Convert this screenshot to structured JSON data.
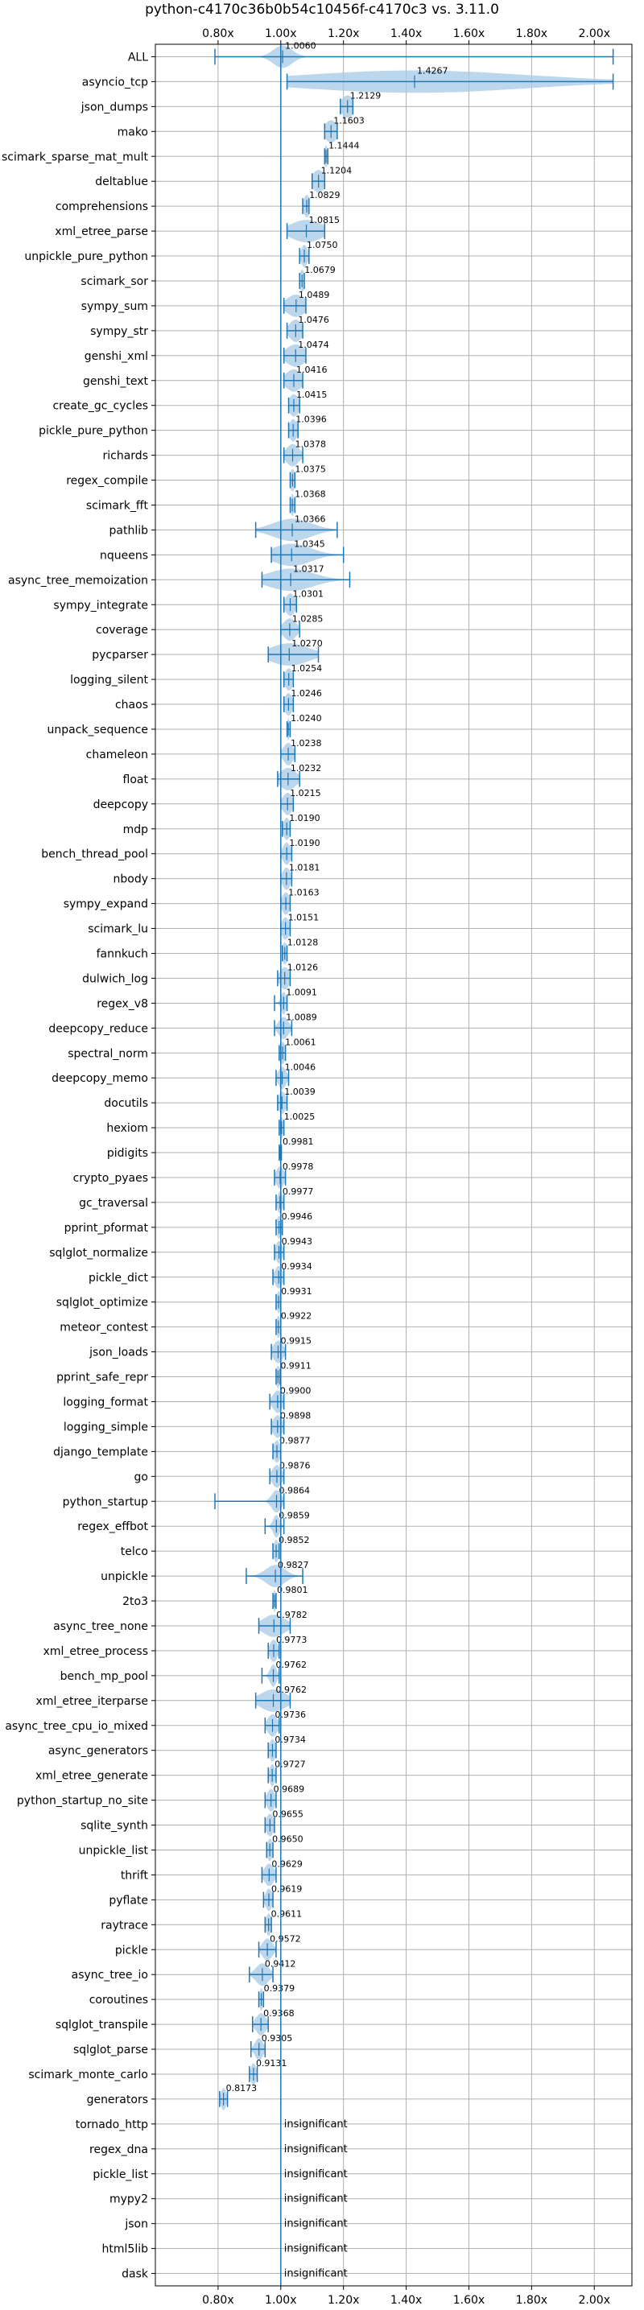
{
  "chart_data": {
    "type": "violin",
    "title": "python-c4170c36b0b54c10456f-c4170c3 vs. 3.11.0",
    "xlabel": "",
    "ylabel": "",
    "xlim": [
      0.6,
      2.12
    ],
    "x_ticks": [
      0.8,
      1.0,
      1.2,
      1.4,
      1.6,
      1.8,
      2.0
    ],
    "x_tick_labels": [
      "0.80x",
      "1.00x",
      "1.20x",
      "1.40x",
      "1.60x",
      "1.80x",
      "2.00x"
    ],
    "reference_line": 1.0,
    "grid": true,
    "colors": {
      "violin": "#a6c8e6",
      "line": "#1f77b4",
      "grid": "#b0b0b0"
    },
    "insignificant_text": "insignificant",
    "benchmarks": [
      {
        "name": "ALL",
        "label": "1.0060",
        "value": 1.006,
        "min": 0.79,
        "max": 2.06,
        "spread": 0.03
      },
      {
        "name": "asyncio_tcp",
        "label": "1.4267",
        "value": 1.4267,
        "min": 1.02,
        "max": 2.06,
        "spread": 0.35
      },
      {
        "name": "json_dumps",
        "label": "1.2129",
        "value": 1.2129,
        "min": 1.19,
        "max": 1.23,
        "spread": 0.02
      },
      {
        "name": "mako",
        "label": "1.1603",
        "value": 1.1603,
        "min": 1.14,
        "max": 1.18,
        "spread": 0.02
      },
      {
        "name": "scimark_sparse_mat_mult",
        "label": "1.1444",
        "value": 1.1444,
        "min": 1.14,
        "max": 1.15,
        "spread": 0.005
      },
      {
        "name": "deltablue",
        "label": "1.1204",
        "value": 1.1204,
        "min": 1.1,
        "max": 1.14,
        "spread": 0.02
      },
      {
        "name": "comprehensions",
        "label": "1.0829",
        "value": 1.0829,
        "min": 1.07,
        "max": 1.09,
        "spread": 0.01
      },
      {
        "name": "xml_etree_parse",
        "label": "1.0815",
        "value": 1.0815,
        "min": 1.02,
        "max": 1.14,
        "spread": 0.05
      },
      {
        "name": "unpickle_pure_python",
        "label": "1.0750",
        "value": 1.075,
        "min": 1.06,
        "max": 1.09,
        "spread": 0.01
      },
      {
        "name": "scimark_sor",
        "label": "1.0679",
        "value": 1.0679,
        "min": 1.06,
        "max": 1.075,
        "spread": 0.008
      },
      {
        "name": "sympy_sum",
        "label": "1.0489",
        "value": 1.0489,
        "min": 1.01,
        "max": 1.08,
        "spread": 0.03
      },
      {
        "name": "sympy_str",
        "label": "1.0476",
        "value": 1.0476,
        "min": 1.02,
        "max": 1.07,
        "spread": 0.02
      },
      {
        "name": "genshi_xml",
        "label": "1.0474",
        "value": 1.0474,
        "min": 1.01,
        "max": 1.08,
        "spread": 0.03
      },
      {
        "name": "genshi_text",
        "label": "1.0416",
        "value": 1.0416,
        "min": 1.01,
        "max": 1.07,
        "spread": 0.025
      },
      {
        "name": "create_gc_cycles",
        "label": "1.0415",
        "value": 1.0415,
        "min": 1.025,
        "max": 1.06,
        "spread": 0.015
      },
      {
        "name": "pickle_pure_python",
        "label": "1.0396",
        "value": 1.0396,
        "min": 1.025,
        "max": 1.055,
        "spread": 0.012
      },
      {
        "name": "richards",
        "label": "1.0378",
        "value": 1.0378,
        "min": 1.01,
        "max": 1.07,
        "spread": 0.02
      },
      {
        "name": "regex_compile",
        "label": "1.0375",
        "value": 1.0375,
        "min": 1.03,
        "max": 1.045,
        "spread": 0.008
      },
      {
        "name": "scimark_fft",
        "label": "1.0368",
        "value": 1.0368,
        "min": 1.03,
        "max": 1.045,
        "spread": 0.005
      },
      {
        "name": "pathlib",
        "label": "1.0366",
        "value": 1.0366,
        "min": 0.92,
        "max": 1.18,
        "spread": 0.06
      },
      {
        "name": "nqueens",
        "label": "1.0345",
        "value": 1.0345,
        "min": 0.97,
        "max": 1.2,
        "spread": 0.06
      },
      {
        "name": "async_tree_memoization",
        "label": "1.0317",
        "value": 1.0317,
        "min": 0.94,
        "max": 1.22,
        "spread": 0.07
      },
      {
        "name": "sympy_integrate",
        "label": "1.0301",
        "value": 1.0301,
        "min": 1.01,
        "max": 1.05,
        "spread": 0.015
      },
      {
        "name": "coverage",
        "label": "1.0285",
        "value": 1.0285,
        "min": 1.0,
        "max": 1.06,
        "spread": 0.02
      },
      {
        "name": "pycparser",
        "label": "1.0270",
        "value": 1.027,
        "min": 0.96,
        "max": 1.12,
        "spread": 0.06
      },
      {
        "name": "logging_silent",
        "label": "1.0254",
        "value": 1.0254,
        "min": 1.01,
        "max": 1.04,
        "spread": 0.012
      },
      {
        "name": "chaos",
        "label": "1.0246",
        "value": 1.0246,
        "min": 1.01,
        "max": 1.04,
        "spread": 0.012
      },
      {
        "name": "unpack_sequence",
        "label": "1.0240",
        "value": 1.024,
        "min": 1.02,
        "max": 1.03,
        "spread": 0.004
      },
      {
        "name": "chameleon",
        "label": "1.0238",
        "value": 1.0238,
        "min": 1.0,
        "max": 1.045,
        "spread": 0.015
      },
      {
        "name": "float",
        "label": "1.0232",
        "value": 1.0232,
        "min": 0.99,
        "max": 1.06,
        "spread": 0.025
      },
      {
        "name": "deepcopy",
        "label": "1.0215",
        "value": 1.0215,
        "min": 1.0,
        "max": 1.04,
        "spread": 0.015
      },
      {
        "name": "mdp",
        "label": "1.0190",
        "value": 1.019,
        "min": 1.005,
        "max": 1.03,
        "spread": 0.01
      },
      {
        "name": "bench_thread_pool",
        "label": "1.0190",
        "value": 1.019,
        "min": 1.0,
        "max": 1.035,
        "spread": 0.012
      },
      {
        "name": "nbody",
        "label": "1.0181",
        "value": 1.0181,
        "min": 1.0,
        "max": 1.035,
        "spread": 0.012
      },
      {
        "name": "sympy_expand",
        "label": "1.0163",
        "value": 1.0163,
        "min": 1.0,
        "max": 1.03,
        "spread": 0.012
      },
      {
        "name": "scimark_lu",
        "label": "1.0151",
        "value": 1.0151,
        "min": 1.0,
        "max": 1.03,
        "spread": 0.012
      },
      {
        "name": "fannkuch",
        "label": "1.0128",
        "value": 1.0128,
        "min": 1.005,
        "max": 1.02,
        "spread": 0.008
      },
      {
        "name": "dulwich_log",
        "label": "1.0126",
        "value": 1.0126,
        "min": 0.99,
        "max": 1.03,
        "spread": 0.015
      },
      {
        "name": "regex_v8",
        "label": "1.0091",
        "value": 1.0091,
        "min": 0.98,
        "max": 1.02,
        "spread": 0.008
      },
      {
        "name": "deepcopy_reduce",
        "label": "1.0089",
        "value": 1.0089,
        "min": 0.98,
        "max": 1.035,
        "spread": 0.015
      },
      {
        "name": "spectral_norm",
        "label": "1.0061",
        "value": 1.0061,
        "min": 0.995,
        "max": 1.015,
        "spread": 0.008
      },
      {
        "name": "deepcopy_memo",
        "label": "1.0046",
        "value": 1.0046,
        "min": 0.985,
        "max": 1.025,
        "spread": 0.012
      },
      {
        "name": "docutils",
        "label": "1.0039",
        "value": 1.0039,
        "min": 0.99,
        "max": 1.02,
        "spread": 0.012
      },
      {
        "name": "hexiom",
        "label": "1.0025",
        "value": 1.0025,
        "min": 0.995,
        "max": 1.01,
        "spread": 0.005
      },
      {
        "name": "pidigits",
        "label": "0.9981",
        "value": 0.9981,
        "min": 0.995,
        "max": 1.002,
        "spread": 0.003
      },
      {
        "name": "crypto_pyaes",
        "label": "0.9978",
        "value": 0.9978,
        "min": 0.98,
        "max": 1.015,
        "spread": 0.012
      },
      {
        "name": "gc_traversal",
        "label": "0.9977",
        "value": 0.9977,
        "min": 0.985,
        "max": 1.01,
        "spread": 0.008
      },
      {
        "name": "pprint_pformat",
        "label": "0.9946",
        "value": 0.9946,
        "min": 0.985,
        "max": 1.005,
        "spread": 0.008
      },
      {
        "name": "sqlglot_normalize",
        "label": "0.9943",
        "value": 0.9943,
        "min": 0.98,
        "max": 1.01,
        "spread": 0.01
      },
      {
        "name": "pickle_dict",
        "label": "0.9934",
        "value": 0.9934,
        "min": 0.975,
        "max": 1.01,
        "spread": 0.012
      },
      {
        "name": "sqlglot_optimize",
        "label": "0.9931",
        "value": 0.9931,
        "min": 0.985,
        "max": 1.0,
        "spread": 0.006
      },
      {
        "name": "meteor_contest",
        "label": "0.9922",
        "value": 0.9922,
        "min": 0.985,
        "max": 1.0,
        "spread": 0.006
      },
      {
        "name": "json_loads",
        "label": "0.9915",
        "value": 0.9915,
        "min": 0.97,
        "max": 1.015,
        "spread": 0.015
      },
      {
        "name": "pprint_safe_repr",
        "label": "0.9911",
        "value": 0.9911,
        "min": 0.985,
        "max": 0.998,
        "spread": 0.006
      },
      {
        "name": "logging_format",
        "label": "0.9900",
        "value": 0.99,
        "min": 0.965,
        "max": 1.01,
        "spread": 0.015
      },
      {
        "name": "logging_simple",
        "label": "0.9898",
        "value": 0.9898,
        "min": 0.97,
        "max": 1.01,
        "spread": 0.015
      },
      {
        "name": "django_template",
        "label": "0.9877",
        "value": 0.9877,
        "min": 0.975,
        "max": 1.0,
        "spread": 0.01
      },
      {
        "name": "go",
        "label": "0.9876",
        "value": 0.9876,
        "min": 0.965,
        "max": 1.01,
        "spread": 0.015
      },
      {
        "name": "python_startup",
        "label": "0.9864",
        "value": 0.9864,
        "min": 0.79,
        "max": 1.01,
        "spread": 0.015
      },
      {
        "name": "regex_effbot",
        "label": "0.9859",
        "value": 0.9859,
        "min": 0.95,
        "max": 1.01,
        "spread": 0.01
      },
      {
        "name": "telco",
        "label": "0.9852",
        "value": 0.9852,
        "min": 0.975,
        "max": 0.995,
        "spread": 0.008
      },
      {
        "name": "unpickle",
        "label": "0.9827",
        "value": 0.9827,
        "min": 0.89,
        "max": 1.07,
        "spread": 0.03
      },
      {
        "name": "2to3",
        "label": "0.9801",
        "value": 0.9801,
        "min": 0.975,
        "max": 0.985,
        "spread": 0.004
      },
      {
        "name": "async_tree_none",
        "label": "0.9782",
        "value": 0.9782,
        "min": 0.93,
        "max": 1.03,
        "spread": 0.035
      },
      {
        "name": "xml_etree_process",
        "label": "0.9773",
        "value": 0.9773,
        "min": 0.96,
        "max": 0.995,
        "spread": 0.012
      },
      {
        "name": "bench_mp_pool",
        "label": "0.9762",
        "value": 0.9762,
        "min": 0.94,
        "max": 0.995,
        "spread": 0.01
      },
      {
        "name": "xml_etree_iterparse",
        "label": "0.9762",
        "value": 0.9762,
        "min": 0.92,
        "max": 1.03,
        "spread": 0.04
      },
      {
        "name": "async_tree_cpu_io_mixed",
        "label": "0.9736",
        "value": 0.9736,
        "min": 0.95,
        "max": 0.995,
        "spread": 0.015
      },
      {
        "name": "async_generators",
        "label": "0.9734",
        "value": 0.9734,
        "min": 0.96,
        "max": 0.985,
        "spread": 0.01
      },
      {
        "name": "xml_etree_generate",
        "label": "0.9727",
        "value": 0.9727,
        "min": 0.96,
        "max": 0.985,
        "spread": 0.008
      },
      {
        "name": "python_startup_no_site",
        "label": "0.9689",
        "value": 0.9689,
        "min": 0.95,
        "max": 0.985,
        "spread": 0.012
      },
      {
        "name": "sqlite_synth",
        "label": "0.9655",
        "value": 0.9655,
        "min": 0.95,
        "max": 0.98,
        "spread": 0.012
      },
      {
        "name": "unpickle_list",
        "label": "0.9650",
        "value": 0.965,
        "min": 0.955,
        "max": 0.975,
        "spread": 0.008
      },
      {
        "name": "thrift",
        "label": "0.9629",
        "value": 0.9629,
        "min": 0.94,
        "max": 0.985,
        "spread": 0.015
      },
      {
        "name": "pyflate",
        "label": "0.9619",
        "value": 0.9619,
        "min": 0.945,
        "max": 0.975,
        "spread": 0.01
      },
      {
        "name": "raytrace",
        "label": "0.9611",
        "value": 0.9611,
        "min": 0.95,
        "max": 0.97,
        "spread": 0.008
      },
      {
        "name": "pickle",
        "label": "0.9572",
        "value": 0.9572,
        "min": 0.93,
        "max": 0.985,
        "spread": 0.015
      },
      {
        "name": "async_tree_io",
        "label": "0.9412",
        "value": 0.9412,
        "min": 0.9,
        "max": 0.975,
        "spread": 0.02
      },
      {
        "name": "coroutines",
        "label": "0.9379",
        "value": 0.9379,
        "min": 0.93,
        "max": 0.945,
        "spread": 0.005
      },
      {
        "name": "sqlglot_transpile",
        "label": "0.9368",
        "value": 0.9368,
        "min": 0.91,
        "max": 0.96,
        "spread": 0.015
      },
      {
        "name": "sqlglot_parse",
        "label": "0.9305",
        "value": 0.9305,
        "min": 0.905,
        "max": 0.95,
        "spread": 0.012
      },
      {
        "name": "scimark_monte_carlo",
        "label": "0.9131",
        "value": 0.9131,
        "min": 0.9,
        "max": 0.925,
        "spread": 0.008
      },
      {
        "name": "generators",
        "label": "0.8173",
        "value": 0.8173,
        "min": 0.805,
        "max": 0.83,
        "spread": 0.008
      },
      {
        "name": "tornado_http",
        "insignificant": true
      },
      {
        "name": "regex_dna",
        "insignificant": true
      },
      {
        "name": "pickle_list",
        "insignificant": true
      },
      {
        "name": "mypy2",
        "insignificant": true
      },
      {
        "name": "json",
        "insignificant": true
      },
      {
        "name": "html5lib",
        "insignificant": true
      },
      {
        "name": "dask",
        "insignificant": true
      }
    ]
  }
}
